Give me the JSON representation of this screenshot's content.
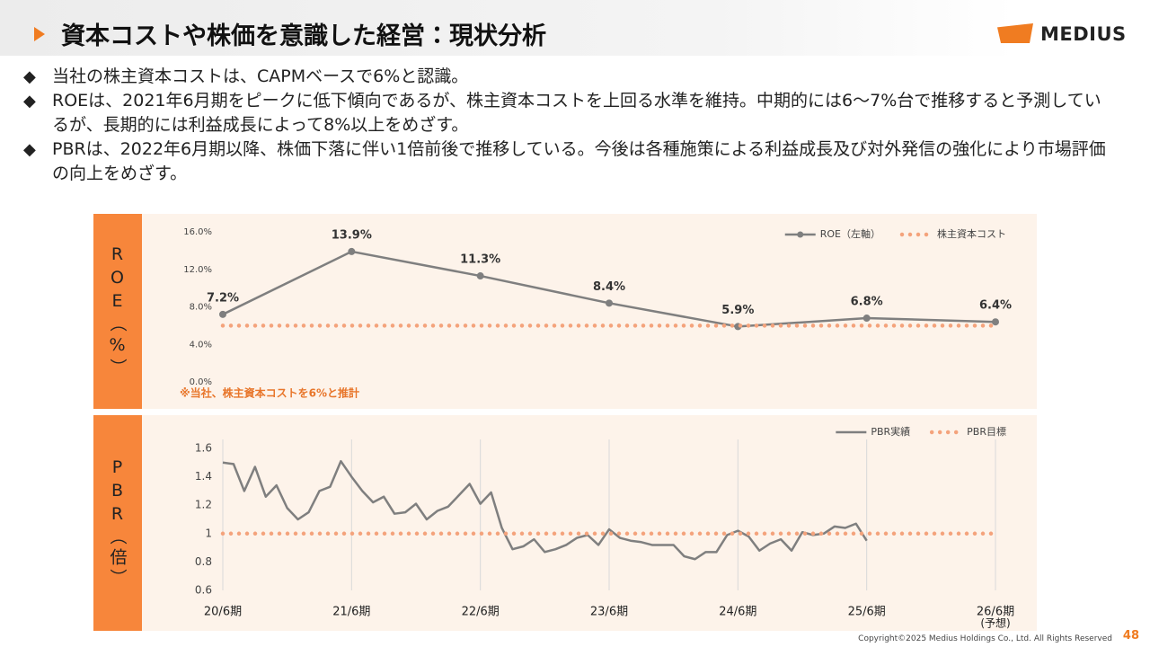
{
  "header": {
    "title": "資本コストや株価を意識した経営：現状分析",
    "logo": "MEDIUS"
  },
  "bullets": [
    "当社の株主資本コストは、CAPMベースで6%と認識。",
    "ROEは、2021年6月期をピークに低下傾向であるが、株主資本コストを上回る水準を維持。中期的には6～7%台で推移すると予測しているが、長期的には利益成長によって8%以上をめざす。",
    "PBRは、2022年6月期以降、株価下落に伴い1倍前後で推移している。今後は各種施策による利益成長及び対外発信の強化により市場評価の向上をめざす。"
  ],
  "chart_data": [
    {
      "type": "line",
      "axis_label": "ROE（%）",
      "annotation": "※当社、株主資本コストを6%と推計",
      "legend": "upper right",
      "ylim": [
        0,
        16
      ],
      "yticks": [
        {
          "value": 0,
          "label": "0.0%"
        },
        {
          "value": 4,
          "label": "4.0%"
        },
        {
          "value": 8,
          "label": "8.0%"
        },
        {
          "value": 12,
          "label": "12.0%"
        },
        {
          "value": 16,
          "label": "16.0%"
        }
      ],
      "series": [
        {
          "name": "ROE（左軸）",
          "color": "#7f7f7f",
          "style": "solid",
          "markers": true,
          "values": [
            7.2,
            13.9,
            11.3,
            8.4,
            5.9,
            6.8,
            6.4
          ],
          "value_labels": [
            "7.2%",
            "13.9%",
            "11.3%",
            "8.4%",
            "5.9%",
            "6.8%",
            "6.4%"
          ]
        },
        {
          "name": "株主資本コスト",
          "color": "#f4a37c",
          "style": "dotted",
          "values": [
            6,
            6,
            6,
            6,
            6,
            6,
            6
          ]
        }
      ]
    },
    {
      "type": "line",
      "axis_label": "PBR（倍）",
      "legend": "upper right",
      "x_note": "(予想)",
      "ylim": [
        0.6,
        1.6
      ],
      "yticks": [
        0.6,
        0.8,
        1,
        1.2,
        1.4,
        1.6
      ],
      "categories": [
        "20/6期",
        null,
        null,
        null,
        null,
        null,
        null,
        null,
        null,
        null,
        null,
        null,
        "21/6期",
        null,
        null,
        null,
        null,
        null,
        null,
        null,
        null,
        null,
        null,
        null,
        "22/6期",
        null,
        null,
        null,
        null,
        null,
        null,
        null,
        null,
        null,
        null,
        null,
        "23/6期",
        null,
        null,
        null,
        null,
        null,
        null,
        null,
        null,
        null,
        null,
        null,
        "24/6期",
        null,
        null,
        null,
        null,
        null,
        null,
        null,
        null,
        null,
        null,
        null,
        "25/6期",
        null,
        null,
        null,
        null,
        null,
        null,
        null,
        null,
        null,
        null,
        null,
        "26/6期"
      ],
      "series": [
        {
          "name": "PBR実績",
          "color": "#7f7f7f",
          "style": "solid",
          "values": [
            1.5,
            1.49,
            1.3,
            1.47,
            1.26,
            1.34,
            1.18,
            1.1,
            1.15,
            1.3,
            1.33,
            1.51,
            1.4,
            1.3,
            1.22,
            1.26,
            1.14,
            1.15,
            1.21,
            1.1,
            1.16,
            1.19,
            1.27,
            1.35,
            1.21,
            1.29,
            1.04,
            0.89,
            0.91,
            0.96,
            0.87,
            0.89,
            0.92,
            0.97,
            0.99,
            0.92,
            1.03,
            0.97,
            0.95,
            0.94,
            0.92,
            0.92,
            0.92,
            0.84,
            0.82,
            0.87,
            0.87,
            0.99,
            1.02,
            0.98,
            0.88,
            0.93,
            0.96,
            0.88,
            1.01,
            0.99,
            1.0,
            1.05,
            1.04,
            1.07,
            0.95,
            null,
            null,
            null,
            null,
            null,
            null,
            null,
            null,
            null,
            null,
            null,
            null
          ]
        },
        {
          "name": "PBR目標",
          "color": "#f4a37c",
          "style": "dotted",
          "values": [
            1,
            1,
            1,
            1,
            1,
            1,
            1,
            1,
            1,
            1,
            1,
            1,
            1,
            1,
            1,
            1,
            1,
            1,
            1,
            1,
            1,
            1,
            1,
            1,
            1,
            1,
            1,
            1,
            1,
            1,
            1,
            1,
            1,
            1,
            1,
            1,
            1,
            1,
            1,
            1,
            1,
            1,
            1,
            1,
            1,
            1,
            1,
            1,
            1,
            1,
            1,
            1,
            1,
            1,
            1,
            1,
            1,
            1,
            1,
            1,
            1,
            1,
            1,
            1,
            1,
            1,
            1,
            1,
            1,
            1,
            1,
            1,
            1
          ]
        }
      ]
    }
  ],
  "footer": {
    "copyright": "Copyright©2025 Medius Holdings Co., Ltd. All Rights Reserved",
    "page": "48"
  }
}
